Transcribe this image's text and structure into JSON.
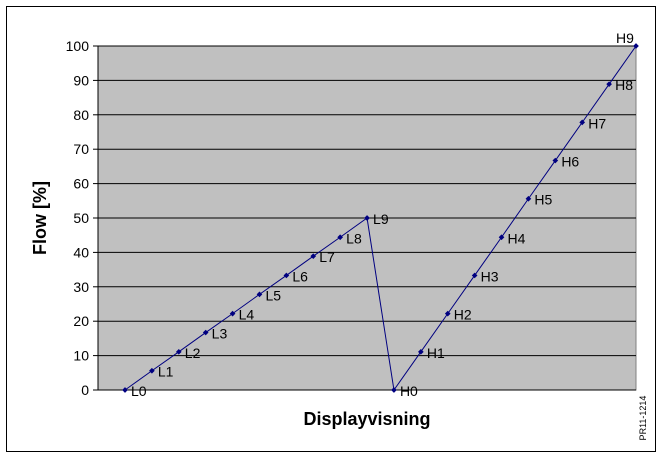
{
  "chart_data": {
    "type": "line",
    "title": "",
    "xlabel": "Displayvisning",
    "ylabel": "Flow [%]",
    "ylim": [
      0,
      100
    ],
    "yticks": [
      0,
      10,
      20,
      30,
      40,
      50,
      60,
      70,
      80,
      90,
      100
    ],
    "grid": true,
    "legend": "none",
    "colors": {
      "plot_background": "#c0c0c0",
      "line": "#000080",
      "gridline": "#000000"
    },
    "categories": [
      "L0",
      "L1",
      "L2",
      "L3",
      "L4",
      "L5",
      "L6",
      "L7",
      "L8",
      "L9",
      "H0",
      "H1",
      "H2",
      "H3",
      "H4",
      "H5",
      "H6",
      "H7",
      "H8",
      "H9"
    ],
    "series": [
      {
        "values": [
          0,
          5.6,
          11.1,
          16.7,
          22.2,
          27.8,
          33.3,
          38.9,
          44.4,
          50,
          0,
          11.1,
          22.2,
          33.3,
          44.4,
          55.6,
          66.7,
          77.8,
          88.9,
          100
        ]
      }
    ]
  },
  "figure_code": "PR11-1214"
}
